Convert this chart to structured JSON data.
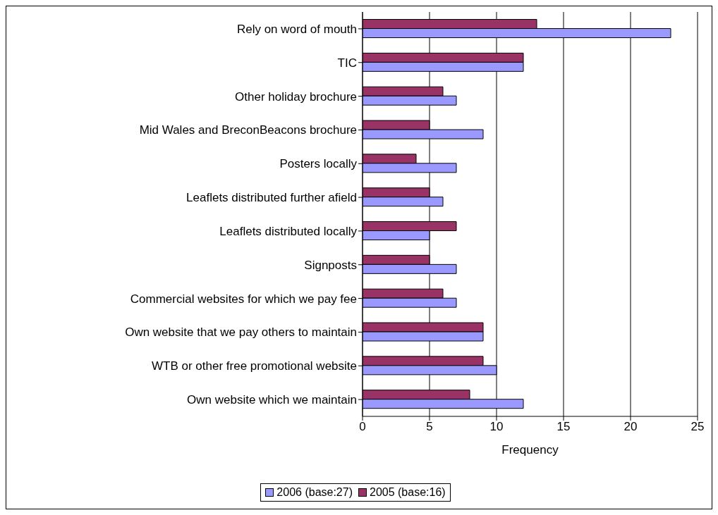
{
  "chart_data": {
    "type": "bar",
    "orientation": "horizontal",
    "xlabel": "Frequency",
    "categories": [
      "Rely on word of mouth",
      "TIC",
      "Other holiday brochure",
      "Mid Wales and BreconBeacons brochure",
      "Posters locally",
      "Leaflets distributed further afield",
      "Leaflets distributed locally",
      "Signposts",
      "Commercial websites for which we pay fee",
      "Own website that we pay others to maintain",
      "WTB or other free promotional website",
      "Own website which we maintain"
    ],
    "series": [
      {
        "name": "2006 (base:27)",
        "color": "#9999ff",
        "values": [
          23,
          12,
          7,
          9,
          7,
          6,
          5,
          7,
          7,
          9,
          10,
          12
        ]
      },
      {
        "name": "2005 (base:16)",
        "color": "#993366",
        "values": [
          13,
          12,
          6,
          5,
          4,
          5,
          7,
          5,
          6,
          9,
          9,
          8
        ]
      }
    ],
    "xlim": [
      0,
      25
    ],
    "xticks": [
      0,
      5,
      10,
      15,
      20,
      25
    ],
    "grid": "x",
    "legend": "bottom"
  }
}
